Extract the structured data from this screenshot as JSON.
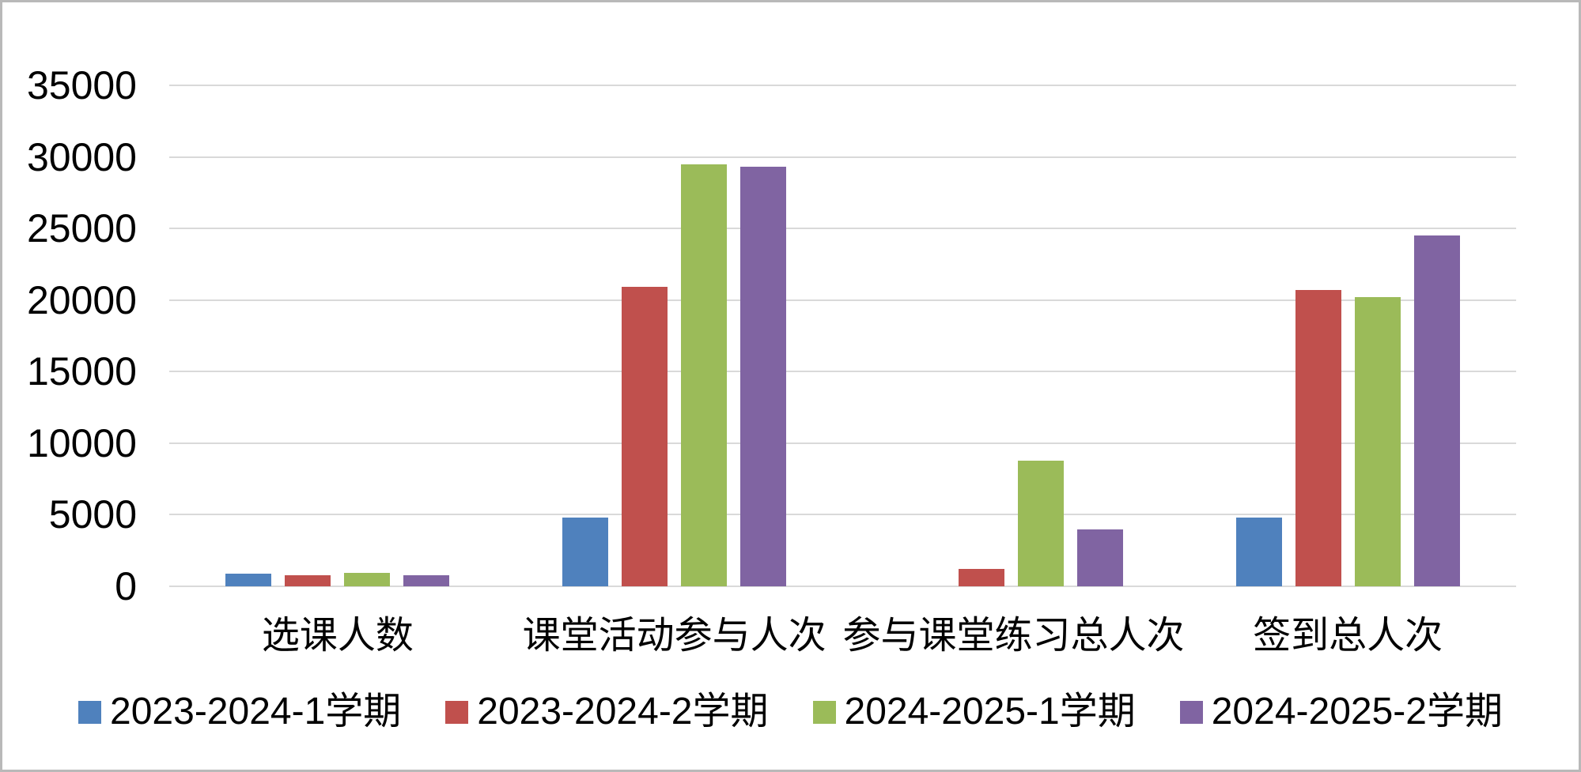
{
  "chart_data": {
    "type": "bar",
    "title": "",
    "xlabel": "",
    "ylabel": "",
    "categories": [
      "选课人数",
      "课堂活动参与人次",
      "参与课堂练习总人次",
      "签到总人次"
    ],
    "series": [
      {
        "name": "2023-2024-1学期",
        "color": "#4F81BD",
        "values": [
          900,
          4800,
          0,
          4800
        ]
      },
      {
        "name": "2023-2024-2学期",
        "color": "#C0504D",
        "values": [
          800,
          20900,
          1200,
          20700
        ]
      },
      {
        "name": "2024-2025-1学期",
        "color": "#9BBB59",
        "values": [
          950,
          29500,
          8800,
          20200
        ]
      },
      {
        "name": "2024-2025-2学期",
        "color": "#8064A2",
        "values": [
          750,
          29300,
          4000,
          24500
        ]
      }
    ],
    "ylim": [
      0,
      35000
    ],
    "yticks": [
      0,
      5000,
      10000,
      15000,
      20000,
      25000,
      30000,
      35000
    ],
    "grid": true,
    "legend_position": "bottom",
    "colors": {
      "gridline": "#D9D9D9",
      "axis_line": "#DADADA",
      "text": "#000000",
      "frame_border": "#B9B9B9",
      "background": "#FFFFFF"
    }
  }
}
